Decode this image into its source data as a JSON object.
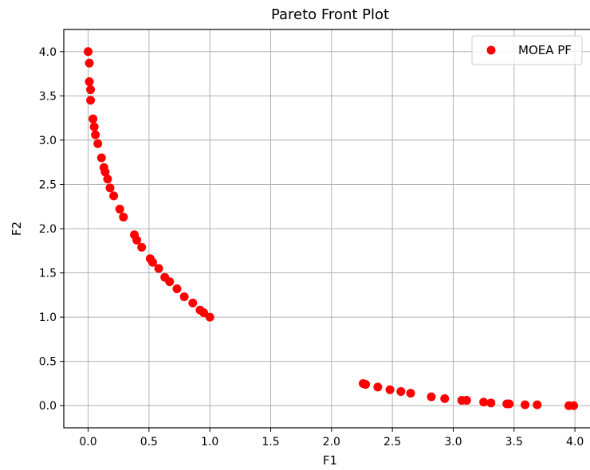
{
  "chart_data": {
    "type": "scatter",
    "title": "Pareto Front Plot",
    "xlabel": "F1",
    "ylabel": "F2",
    "xlim": [
      -0.2,
      4.15
    ],
    "ylim": [
      -0.25,
      4.25
    ],
    "xticks": [
      0.0,
      0.5,
      1.0,
      1.5,
      2.0,
      2.5,
      3.0,
      3.5,
      4.0
    ],
    "yticks": [
      0.0,
      0.5,
      1.0,
      1.5,
      2.0,
      2.5,
      3.0,
      3.5,
      4.0
    ],
    "grid": true,
    "legend_position": "top-right",
    "series": [
      {
        "name": "MOEA PF",
        "color": "#ff0000",
        "marker": "circle",
        "points": [
          [
            0.0,
            4.0
          ],
          [
            0.01,
            3.87
          ],
          [
            0.01,
            3.66
          ],
          [
            0.02,
            3.57
          ],
          [
            0.02,
            3.45
          ],
          [
            0.04,
            3.24
          ],
          [
            0.05,
            3.15
          ],
          [
            0.06,
            3.06
          ],
          [
            0.08,
            2.96
          ],
          [
            0.11,
            2.8
          ],
          [
            0.13,
            2.69
          ],
          [
            0.14,
            2.64
          ],
          [
            0.16,
            2.56
          ],
          [
            0.18,
            2.46
          ],
          [
            0.21,
            2.37
          ],
          [
            0.26,
            2.22
          ],
          [
            0.29,
            2.13
          ],
          [
            0.38,
            1.93
          ],
          [
            0.4,
            1.87
          ],
          [
            0.44,
            1.79
          ],
          [
            0.51,
            1.66
          ],
          [
            0.53,
            1.62
          ],
          [
            0.58,
            1.55
          ],
          [
            0.63,
            1.45
          ],
          [
            0.67,
            1.4
          ],
          [
            0.73,
            1.32
          ],
          [
            0.79,
            1.23
          ],
          [
            0.86,
            1.16
          ],
          [
            0.92,
            1.08
          ],
          [
            0.95,
            1.05
          ],
          [
            1.0,
            1.0
          ],
          [
            2.26,
            0.25
          ],
          [
            2.28,
            0.24
          ],
          [
            2.38,
            0.21
          ],
          [
            2.48,
            0.18
          ],
          [
            2.57,
            0.16
          ],
          [
            2.65,
            0.14
          ],
          [
            2.82,
            0.1
          ],
          [
            2.93,
            0.08
          ],
          [
            3.07,
            0.06
          ],
          [
            3.11,
            0.06
          ],
          [
            3.25,
            0.04
          ],
          [
            3.31,
            0.03
          ],
          [
            3.44,
            0.02
          ],
          [
            3.46,
            0.02
          ],
          [
            3.59,
            0.01
          ],
          [
            3.69,
            0.01
          ],
          [
            3.95,
            0.0
          ],
          [
            3.99,
            0.0
          ]
        ]
      }
    ]
  }
}
